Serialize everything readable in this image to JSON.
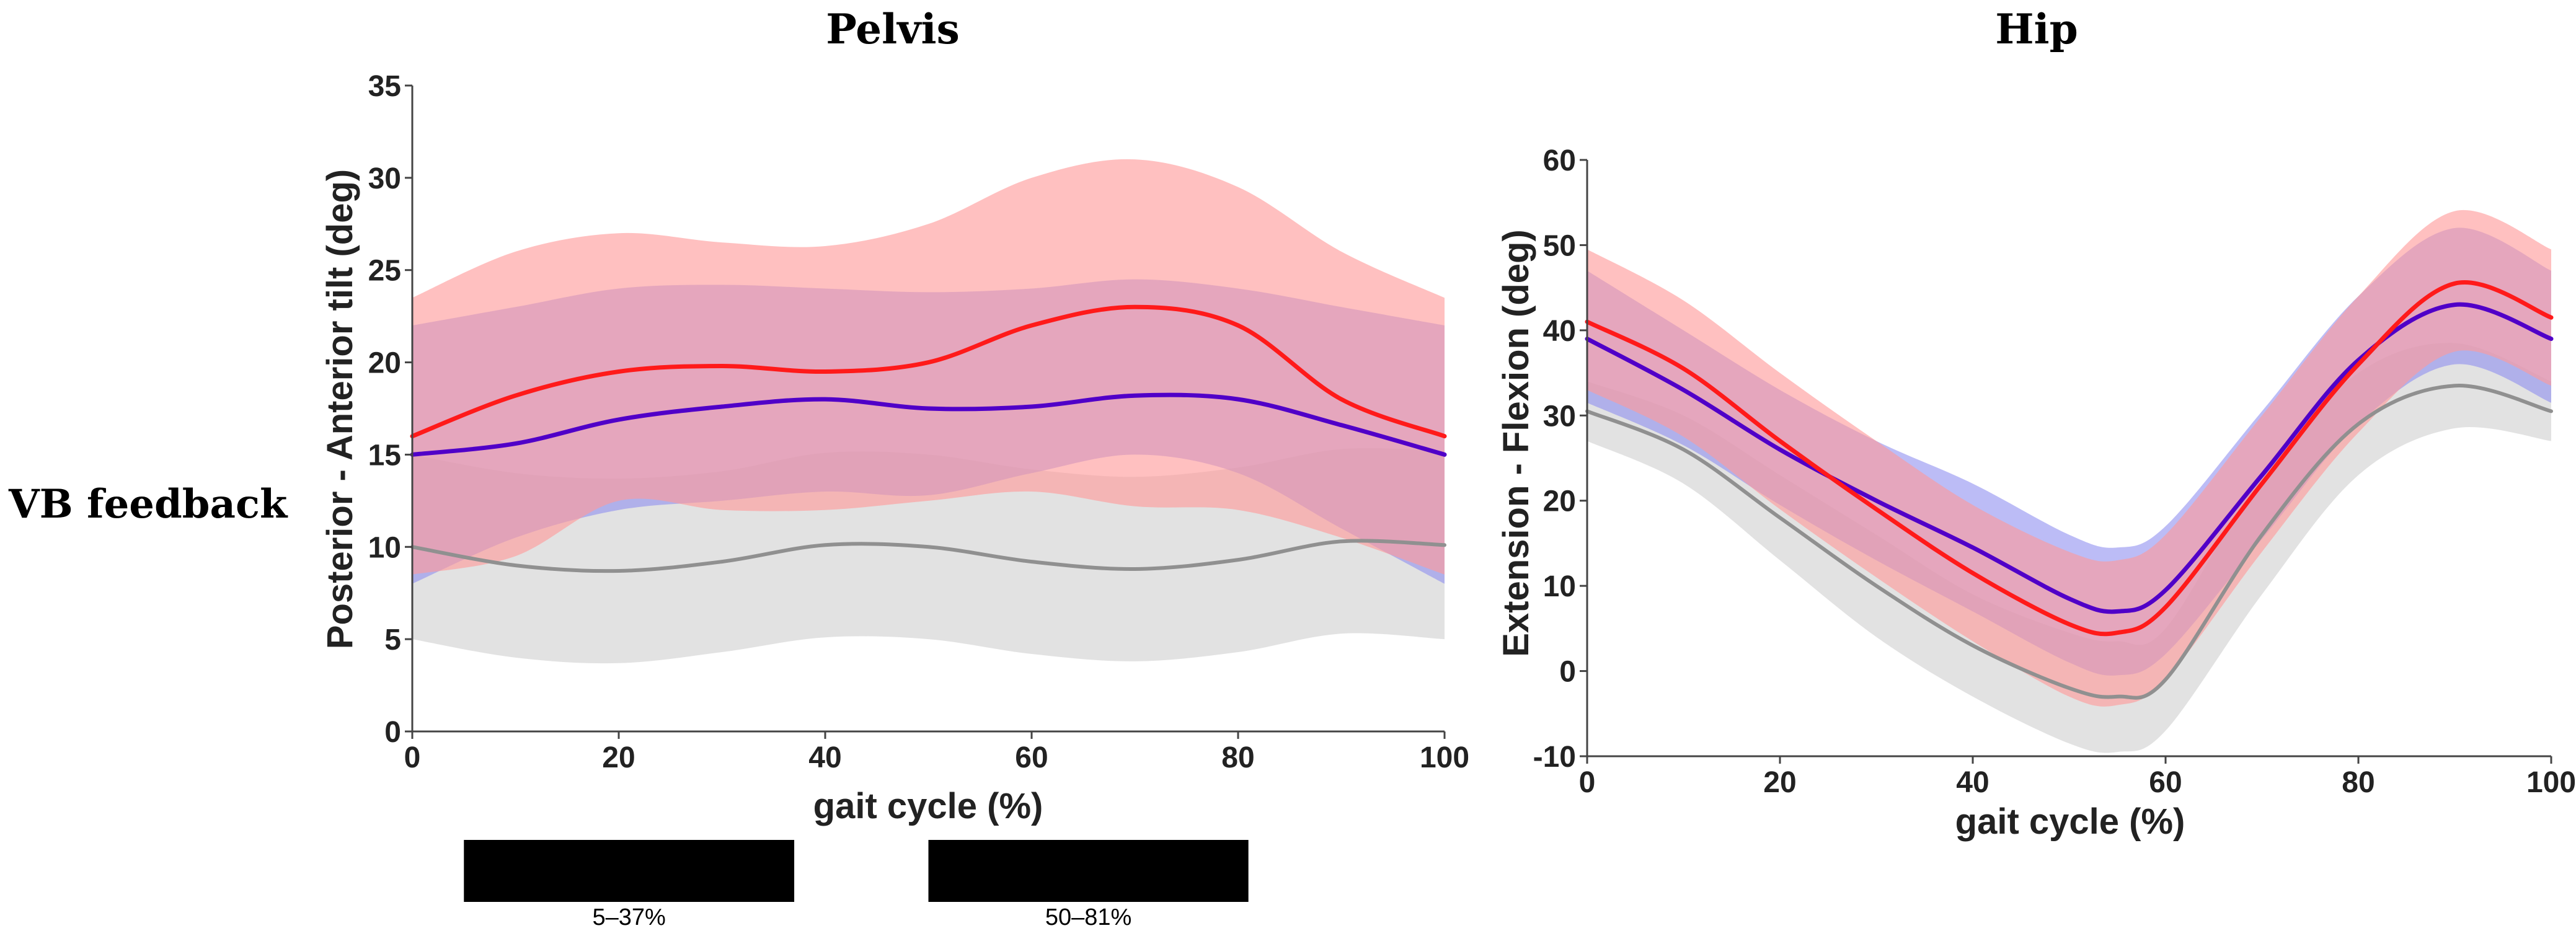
{
  "row_label": "VB feedback",
  "colors": {
    "red_line": "#ff1a1a",
    "red_band": "#ff9a9a",
    "blue_line": "#5000c8",
    "blue_band": "#9090f0",
    "magenta_overlap": "#d070b8",
    "gray_line": "#909090",
    "gray_band": "#d8d8d8",
    "sig_bar": "#000000"
  },
  "chart_data": [
    {
      "id": "pelvis",
      "type": "line",
      "title": "Pelvis",
      "xlabel": "gait cycle (%)",
      "ylabel": "Posterior - Anterior tilt (deg)",
      "xlim": [
        0,
        100
      ],
      "ylim": [
        0,
        35
      ],
      "xticks": [
        "0",
        "20",
        "40",
        "60",
        "80",
        "100"
      ],
      "xtick_values": [
        0,
        20,
        40,
        60,
        80,
        100
      ],
      "yticks": [
        "0",
        "5",
        "10",
        "15",
        "20",
        "25",
        "30",
        "35"
      ],
      "ytick_values": [
        0,
        5,
        10,
        15,
        20,
        25,
        30,
        35
      ],
      "x": [
        0,
        10,
        20,
        30,
        40,
        50,
        60,
        70,
        80,
        90,
        100
      ],
      "series": [
        {
          "name": "gray",
          "values": [
            10.0,
            9.0,
            8.7,
            9.2,
            10.1,
            10.0,
            9.2,
            8.8,
            9.3,
            10.3,
            10.1
          ],
          "lower": [
            5.0,
            4.0,
            3.7,
            4.3,
            5.1,
            5.0,
            4.2,
            3.8,
            4.3,
            5.3,
            5.0
          ],
          "upper": [
            15.0,
            14.0,
            13.7,
            14.1,
            15.1,
            15.0,
            14.2,
            13.8,
            14.3,
            15.3,
            15.2
          ]
        },
        {
          "name": "blue",
          "values": [
            15.0,
            15.6,
            16.9,
            17.6,
            18.0,
            17.5,
            17.6,
            18.2,
            18.0,
            16.6,
            15.0
          ],
          "lower": [
            8.0,
            10.5,
            12.0,
            12.5,
            13.0,
            12.8,
            14.0,
            15.0,
            14.0,
            11.0,
            8.0
          ],
          "upper": [
            22.0,
            23.0,
            24.0,
            24.2,
            24.0,
            23.8,
            24.0,
            24.5,
            24.0,
            23.0,
            22.0
          ]
        },
        {
          "name": "red",
          "values": [
            16.0,
            18.2,
            19.5,
            19.8,
            19.5,
            20.0,
            22.0,
            23.0,
            22.0,
            18.0,
            16.0
          ],
          "lower": [
            8.5,
            9.5,
            12.5,
            12.0,
            12.0,
            12.5,
            13.0,
            12.2,
            12.0,
            10.5,
            8.5
          ],
          "upper": [
            23.5,
            26.0,
            27.0,
            26.5,
            26.3,
            27.5,
            30.0,
            31.0,
            29.5,
            26.0,
            23.5
          ]
        }
      ],
      "significance": [
        {
          "start": 5,
          "end": 37,
          "label": "5–37%"
        },
        {
          "start": 50,
          "end": 81,
          "label": "50–81%"
        }
      ]
    },
    {
      "id": "hip",
      "type": "line",
      "title": "Hip",
      "xlabel": "gait cycle (%)",
      "ylabel": "Extension - Flexion (deg)",
      "xlim": [
        0,
        100
      ],
      "ylim": [
        -10,
        60
      ],
      "xticks": [
        "0",
        "20",
        "40",
        "60",
        "80",
        "100"
      ],
      "xtick_values": [
        0,
        20,
        40,
        60,
        80,
        100
      ],
      "yticks": [
        "-10",
        "0",
        "10",
        "20",
        "30",
        "40",
        "50",
        "60"
      ],
      "ytick_values": [
        -10,
        0,
        10,
        20,
        30,
        40,
        50,
        60
      ],
      "x": [
        0,
        10,
        20,
        30,
        40,
        50,
        55,
        60,
        70,
        80,
        90,
        100
      ],
      "series": [
        {
          "name": "gray",
          "values": [
            30.5,
            26.0,
            18.0,
            10.0,
            3.0,
            -2.0,
            -3.0,
            -1.0,
            16.0,
            29.0,
            33.5,
            30.5
          ],
          "lower": [
            27.0,
            22.0,
            13.0,
            4.0,
            -3.0,
            -8.5,
            -9.5,
            -7.0,
            9.0,
            23.0,
            28.5,
            27.0
          ],
          "upper": [
            34.0,
            30.0,
            23.0,
            16.0,
            9.0,
            4.5,
            3.5,
            5.0,
            23.0,
            35.0,
            38.5,
            34.0
          ]
        },
        {
          "name": "blue",
          "values": [
            39.0,
            33.0,
            26.0,
            20.0,
            14.5,
            8.5,
            7.0,
            9.5,
            23.0,
            36.5,
            43.0,
            39.0
          ],
          "lower": [
            31.5,
            26.5,
            19.5,
            13.0,
            7.0,
            1.0,
            -0.5,
            2.0,
            15.5,
            29.0,
            36.0,
            31.5
          ],
          "upper": [
            47.0,
            40.0,
            33.0,
            27.0,
            22.0,
            16.0,
            14.5,
            17.0,
            30.5,
            44.0,
            52.0,
            47.0
          ]
        },
        {
          "name": "red",
          "values": [
            41.0,
            35.5,
            27.0,
            19.0,
            11.5,
            5.5,
            4.5,
            7.5,
            22.0,
            36.0,
            45.5,
            41.5
          ],
          "lower": [
            33.0,
            27.5,
            19.0,
            11.0,
            3.5,
            -3.0,
            -4.0,
            -1.0,
            14.0,
            28.0,
            37.5,
            33.5
          ],
          "upper": [
            49.5,
            43.5,
            35.0,
            27.0,
            19.5,
            14.0,
            13.0,
            16.0,
            30.0,
            44.0,
            54.0,
            49.5
          ]
        }
      ]
    }
  ]
}
